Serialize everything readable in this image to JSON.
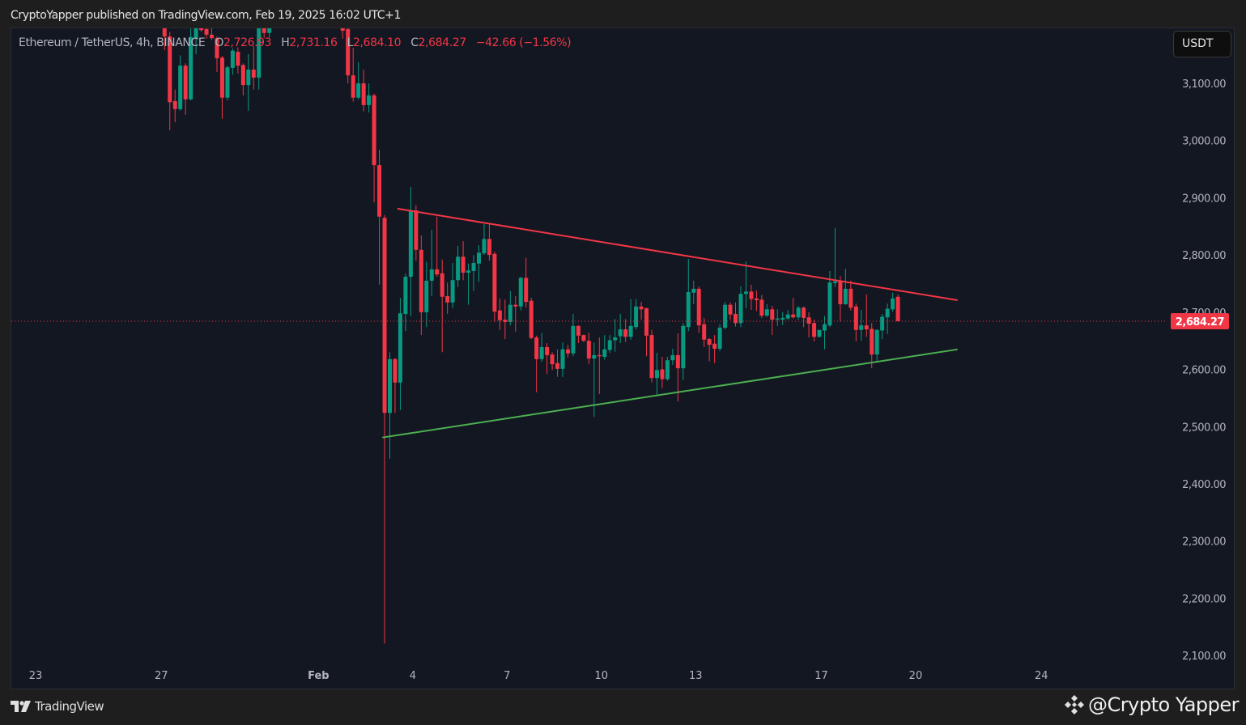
{
  "header": {
    "published": "CryptoYapper published on TradingView.com, Feb 19, 2025 16:02 UTC+1"
  },
  "legend": {
    "symbol": "Ethereum / TetherUS, 4h, BINANCE",
    "o_label": "O",
    "o": "2,726.93",
    "h_label": "H",
    "h": "2,731.16",
    "l_label": "L",
    "l": "2,684.10",
    "c_label": "C",
    "c": "2,684.27",
    "change": "−42.66 (−1.56%)"
  },
  "currency_button": "USDT",
  "footer": {
    "logo_text": "TradingView",
    "watermark": "@Crypto Yapper"
  },
  "colors": {
    "up": "#089981",
    "down": "#f23645",
    "background": "#131722",
    "resistance": "#f23645",
    "support": "#4caf50"
  },
  "chart_data": {
    "type": "candlestick",
    "interval": "4h",
    "ylim": [
      2100,
      3196
    ],
    "grid": false,
    "y_ticks": [
      "3,100.00",
      "3,000.00",
      "2,900.00",
      "2,800.00",
      "2,700.00",
      "2,600.00",
      "2,500.00",
      "2,400.00",
      "2,300.00",
      "2,200.00",
      "2,100.00"
    ],
    "y_tick_values": [
      3100,
      3000,
      2900,
      2800,
      2700,
      2600,
      2500,
      2400,
      2300,
      2200,
      2100
    ],
    "x_ticks": [
      {
        "label": "23",
        "date": "2025-01-23"
      },
      {
        "label": "27",
        "date": "2025-01-27"
      },
      {
        "label": "Feb",
        "date": "2025-02-01"
      },
      {
        "label": "4",
        "date": "2025-02-04"
      },
      {
        "label": "7",
        "date": "2025-02-07"
      },
      {
        "label": "10",
        "date": "2025-02-10"
      },
      {
        "label": "13",
        "date": "2025-02-13"
      },
      {
        "label": "17",
        "date": "2025-02-17"
      },
      {
        "label": "20",
        "date": "2025-02-20"
      },
      {
        "label": "24",
        "date": "2025-02-24"
      }
    ],
    "last_price": 2684.27,
    "last_price_label": "2,684.27",
    "trendlines": [
      {
        "role": "resistance",
        "start": [
          "2025-02-03 12:20",
          2881
        ],
        "end": [
          "2025-02-21 08:00",
          2721
        ]
      },
      {
        "role": "support",
        "start": [
          "2025-02-03 00:45",
          2481
        ],
        "end": [
          "2025-02-21 08:00",
          2635
        ]
      }
    ],
    "candle_fields": [
      "time",
      "open",
      "high",
      "low",
      "close"
    ],
    "candles": [
      [
        "2025-01-27 00:00",
        3215,
        3240,
        3158,
        3182
      ],
      [
        "2025-01-27 04:00",
        3182,
        3190,
        3018,
        3067
      ],
      [
        "2025-01-27 08:00",
        3069,
        3089,
        3032,
        3055
      ],
      [
        "2025-01-27 12:00",
        3055,
        3149,
        3052,
        3131
      ],
      [
        "2025-01-27 16:00",
        3131,
        3135,
        3045,
        3072
      ],
      [
        "2025-01-27 20:00",
        3072,
        3196,
        3070,
        3181
      ],
      [
        "2025-01-28 00:00",
        3179,
        3230,
        3151,
        3205
      ],
      [
        "2025-01-28 04:00",
        3215,
        3225,
        3190,
        3193
      ],
      [
        "2025-01-28 08:00",
        3195,
        3210,
        3178,
        3185
      ],
      [
        "2025-01-28 12:00",
        3185,
        3200,
        3176,
        3179
      ],
      [
        "2025-01-28 16:00",
        3179,
        3182,
        3120,
        3144
      ],
      [
        "2025-01-28 20:00",
        3145,
        3148,
        3038,
        3075
      ],
      [
        "2025-01-29 00:00",
        3075,
        3131,
        3070,
        3128
      ],
      [
        "2025-01-29 04:00",
        3127,
        3161,
        3115,
        3157
      ],
      [
        "2025-01-29 08:00",
        3155,
        3163,
        3117,
        3131
      ],
      [
        "2025-01-29 12:00",
        3132,
        3135,
        3079,
        3097
      ],
      [
        "2025-01-29 16:00",
        3097,
        3151,
        3052,
        3124
      ],
      [
        "2025-01-29 20:00",
        3124,
        3165,
        3089,
        3110
      ],
      [
        "2025-01-30 00:00",
        3110,
        3230,
        3089,
        3200
      ],
      [
        "2025-01-30 04:00",
        3210,
        3225,
        3179,
        3188
      ],
      [
        "2025-01-30 08:00",
        3188,
        3220,
        3180,
        3210
      ],
      [
        "2025-02-01 16:00",
        3200,
        3215,
        3178,
        3192
      ],
      [
        "2025-02-01 20:00",
        3195,
        3205,
        3100,
        3114
      ],
      [
        "2025-02-02 00:00",
        3114,
        3162,
        3068,
        3075
      ],
      [
        "2025-02-02 04:00",
        3075,
        3137,
        3072,
        3100
      ],
      [
        "2025-02-02 08:00",
        3100,
        3124,
        3051,
        3062
      ],
      [
        "2025-02-02 12:00",
        3062,
        3100,
        3049,
        3079
      ],
      [
        "2025-02-02 16:00",
        3079,
        3082,
        2892,
        2957
      ],
      [
        "2025-02-02 20:00",
        2957,
        2984,
        2748,
        2867
      ],
      [
        "2025-02-03 00:00",
        2865,
        2870,
        2121,
        2524
      ],
      [
        "2025-02-03 04:00",
        2524,
        2630,
        2444,
        2618
      ],
      [
        "2025-02-03 08:00",
        2618,
        2620,
        2524,
        2577
      ],
      [
        "2025-02-03 12:00",
        2577,
        2725,
        2529,
        2698
      ],
      [
        "2025-02-03 16:00",
        2697,
        2768,
        2667,
        2762
      ],
      [
        "2025-02-03 20:00",
        2762,
        2919,
        2693,
        2878
      ],
      [
        "2025-02-04 00:00",
        2878,
        2887,
        2790,
        2809
      ],
      [
        "2025-02-04 04:00",
        2809,
        2834,
        2660,
        2700
      ],
      [
        "2025-02-04 08:00",
        2700,
        2788,
        2674,
        2755
      ],
      [
        "2025-02-04 12:00",
        2755,
        2844,
        2728,
        2775
      ],
      [
        "2025-02-04 16:00",
        2775,
        2867,
        2762,
        2766
      ],
      [
        "2025-02-04 20:00",
        2768,
        2792,
        2630,
        2727
      ],
      [
        "2025-02-05 00:00",
        2728,
        2752,
        2697,
        2717
      ],
      [
        "2025-02-05 04:00",
        2717,
        2786,
        2707,
        2756
      ],
      [
        "2025-02-05 08:00",
        2756,
        2816,
        2744,
        2797
      ],
      [
        "2025-02-05 12:00",
        2797,
        2824,
        2756,
        2769
      ],
      [
        "2025-02-05 16:00",
        2769,
        2785,
        2713,
        2773
      ],
      [
        "2025-02-05 20:00",
        2772,
        2800,
        2737,
        2786
      ],
      [
        "2025-02-06 00:00",
        2785,
        2817,
        2753,
        2804
      ],
      [
        "2025-02-06 04:00",
        2803,
        2854,
        2800,
        2828
      ],
      [
        "2025-02-06 08:00",
        2828,
        2854,
        2790,
        2800
      ],
      [
        "2025-02-06 12:00",
        2802,
        2806,
        2683,
        2701
      ],
      [
        "2025-02-06 16:00",
        2703,
        2724,
        2669,
        2686
      ],
      [
        "2025-02-06 20:00",
        2687,
        2722,
        2653,
        2683
      ],
      [
        "2025-02-07 00:00",
        2683,
        2737,
        2677,
        2713
      ],
      [
        "2025-02-07 04:00",
        2713,
        2728,
        2666,
        2710
      ],
      [
        "2025-02-07 08:00",
        2710,
        2762,
        2703,
        2760
      ],
      [
        "2025-02-07 12:00",
        2760,
        2795,
        2708,
        2718
      ],
      [
        "2025-02-07 16:00",
        2720,
        2725,
        2653,
        2655
      ],
      [
        "2025-02-07 20:00",
        2656,
        2659,
        2560,
        2618
      ],
      [
        "2025-02-08 00:00",
        2618,
        2664,
        2613,
        2639
      ],
      [
        "2025-02-08 04:00",
        2639,
        2646,
        2592,
        2625
      ],
      [
        "2025-02-08 08:00",
        2626,
        2630,
        2599,
        2609
      ],
      [
        "2025-02-08 12:00",
        2611,
        2635,
        2587,
        2601
      ],
      [
        "2025-02-08 16:00",
        2601,
        2647,
        2587,
        2635
      ],
      [
        "2025-02-08 20:00",
        2635,
        2643,
        2621,
        2628
      ],
      [
        "2025-02-09 00:00",
        2628,
        2697,
        2623,
        2676
      ],
      [
        "2025-02-09 04:00",
        2676,
        2677,
        2646,
        2659
      ],
      [
        "2025-02-09 08:00",
        2660,
        2661,
        2648,
        2650
      ],
      [
        "2025-02-09 12:00",
        2650,
        2664,
        2609,
        2619
      ],
      [
        "2025-02-09 16:00",
        2619,
        2647,
        2517,
        2625
      ],
      [
        "2025-02-09 20:00",
        2625,
        2656,
        2557,
        2623
      ],
      [
        "2025-02-10 00:00",
        2622,
        2660,
        2617,
        2635
      ],
      [
        "2025-02-10 04:00",
        2634,
        2660,
        2629,
        2651
      ],
      [
        "2025-02-10 08:00",
        2651,
        2688,
        2631,
        2656
      ],
      [
        "2025-02-10 12:00",
        2658,
        2697,
        2646,
        2670
      ],
      [
        "2025-02-10 16:00",
        2670,
        2688,
        2648,
        2657
      ],
      [
        "2025-02-10 20:00",
        2657,
        2723,
        2652,
        2676
      ],
      [
        "2025-02-11 00:00",
        2674,
        2723,
        2670,
        2710
      ],
      [
        "2025-02-11 04:00",
        2710,
        2718,
        2687,
        2705
      ],
      [
        "2025-02-11 08:00",
        2707,
        2708,
        2623,
        2659
      ],
      [
        "2025-02-11 12:00",
        2660,
        2669,
        2577,
        2585
      ],
      [
        "2025-02-11 16:00",
        2585,
        2629,
        2556,
        2599
      ],
      [
        "2025-02-11 20:00",
        2600,
        2622,
        2567,
        2583
      ],
      [
        "2025-02-12 00:00",
        2583,
        2622,
        2580,
        2616
      ],
      [
        "2025-02-12 04:00",
        2616,
        2636,
        2608,
        2625
      ],
      [
        "2025-02-12 08:00",
        2625,
        2663,
        2544,
        2602
      ],
      [
        "2025-02-12 12:00",
        2602,
        2681,
        2581,
        2676
      ],
      [
        "2025-02-12 16:00",
        2674,
        2793,
        2667,
        2735
      ],
      [
        "2025-02-12 20:00",
        2734,
        2755,
        2714,
        2741
      ],
      [
        "2025-02-13 00:00",
        2741,
        2745,
        2664,
        2677
      ],
      [
        "2025-02-13 04:00",
        2679,
        2690,
        2639,
        2652
      ],
      [
        "2025-02-13 08:00",
        2653,
        2655,
        2614,
        2643
      ],
      [
        "2025-02-13 12:00",
        2645,
        2660,
        2611,
        2636
      ],
      [
        "2025-02-13 16:00",
        2636,
        2679,
        2632,
        2673
      ],
      [
        "2025-02-13 20:00",
        2673,
        2718,
        2670,
        2713
      ],
      [
        "2025-02-14 00:00",
        2713,
        2717,
        2687,
        2696
      ],
      [
        "2025-02-14 04:00",
        2697,
        2717,
        2675,
        2681
      ],
      [
        "2025-02-14 08:00",
        2681,
        2745,
        2674,
        2732
      ],
      [
        "2025-02-14 12:00",
        2732,
        2789,
        2707,
        2736
      ],
      [
        "2025-02-14 16:00",
        2736,
        2748,
        2704,
        2723
      ],
      [
        "2025-02-14 20:00",
        2724,
        2738,
        2702,
        2721
      ],
      [
        "2025-02-15 00:00",
        2722,
        2730,
        2690,
        2694
      ],
      [
        "2025-02-15 04:00",
        2694,
        2714,
        2692,
        2705
      ],
      [
        "2025-02-15 08:00",
        2705,
        2711,
        2660,
        2687
      ],
      [
        "2025-02-15 12:00",
        2687,
        2705,
        2676,
        2689
      ],
      [
        "2025-02-15 16:00",
        2687,
        2700,
        2678,
        2690
      ],
      [
        "2025-02-15 20:00",
        2689,
        2704,
        2687,
        2696
      ],
      [
        "2025-02-16 00:00",
        2696,
        2725,
        2689,
        2691
      ],
      [
        "2025-02-16 04:00",
        2691,
        2711,
        2687,
        2708
      ],
      [
        "2025-02-16 08:00",
        2708,
        2710,
        2674,
        2690
      ],
      [
        "2025-02-16 12:00",
        2691,
        2700,
        2656,
        2680
      ],
      [
        "2025-02-16 16:00",
        2681,
        2687,
        2649,
        2657
      ],
      [
        "2025-02-16 20:00",
        2657,
        2669,
        2656,
        2669
      ],
      [
        "2025-02-17 00:00",
        2668,
        2693,
        2635,
        2679
      ],
      [
        "2025-02-17 04:00",
        2677,
        2772,
        2674,
        2752
      ],
      [
        "2025-02-17 08:00",
        2751,
        2847,
        2744,
        2754
      ],
      [
        "2025-02-17 12:00",
        2754,
        2763,
        2684,
        2714
      ],
      [
        "2025-02-17 16:00",
        2714,
        2776,
        2713,
        2741
      ],
      [
        "2025-02-17 20:00",
        2741,
        2755,
        2703,
        2708
      ],
      [
        "2025-02-18 00:00",
        2710,
        2715,
        2649,
        2669
      ],
      [
        "2025-02-18 04:00",
        2669,
        2704,
        2650,
        2677
      ],
      [
        "2025-02-18 08:00",
        2677,
        2731,
        2657,
        2670
      ],
      [
        "2025-02-18 12:00",
        2671,
        2681,
        2602,
        2626
      ],
      [
        "2025-02-18 16:00",
        2626,
        2670,
        2614,
        2669
      ],
      [
        "2025-02-18 20:00",
        2668,
        2697,
        2653,
        2692
      ],
      [
        "2025-02-19 00:00",
        2691,
        2715,
        2662,
        2706
      ],
      [
        "2025-02-19 04:00",
        2705,
        2734,
        2701,
        2724
      ],
      [
        "2025-02-19 08:00",
        2726.93,
        2731.16,
        2684.1,
        2684.27
      ]
    ]
  }
}
